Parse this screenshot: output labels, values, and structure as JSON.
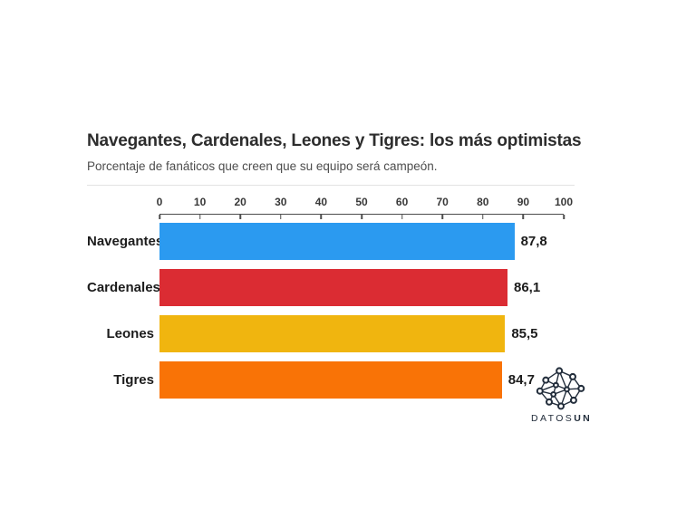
{
  "chart_data": {
    "type": "bar",
    "orientation": "horizontal",
    "title": "Navegantes, Cardenales, Leones y Tigres: los más optimistas",
    "subtitle": "Porcentaje de fanáticos que creen que su equipo será campeón.",
    "categories": [
      "Navegantes",
      "Cardenales",
      "Leones",
      "Tigres"
    ],
    "values": [
      87.8,
      86.1,
      85.5,
      84.7
    ],
    "value_labels": [
      "87,8",
      "86,1",
      "85,5",
      "84,7"
    ],
    "colors": [
      "#2b9af0",
      "#db2c33",
      "#f0b50f",
      "#f97306"
    ],
    "xlim": [
      0,
      100
    ],
    "ticks": [
      0,
      10,
      20,
      30,
      40,
      50,
      60,
      70,
      80,
      90,
      100
    ],
    "grid": false,
    "legend": "none",
    "xlabel": "",
    "ylabel": ""
  },
  "logo": {
    "icon": "network-graph-icon",
    "text_regular": "DATOS",
    "text_bold": "UN",
    "color": "#232e3c"
  }
}
